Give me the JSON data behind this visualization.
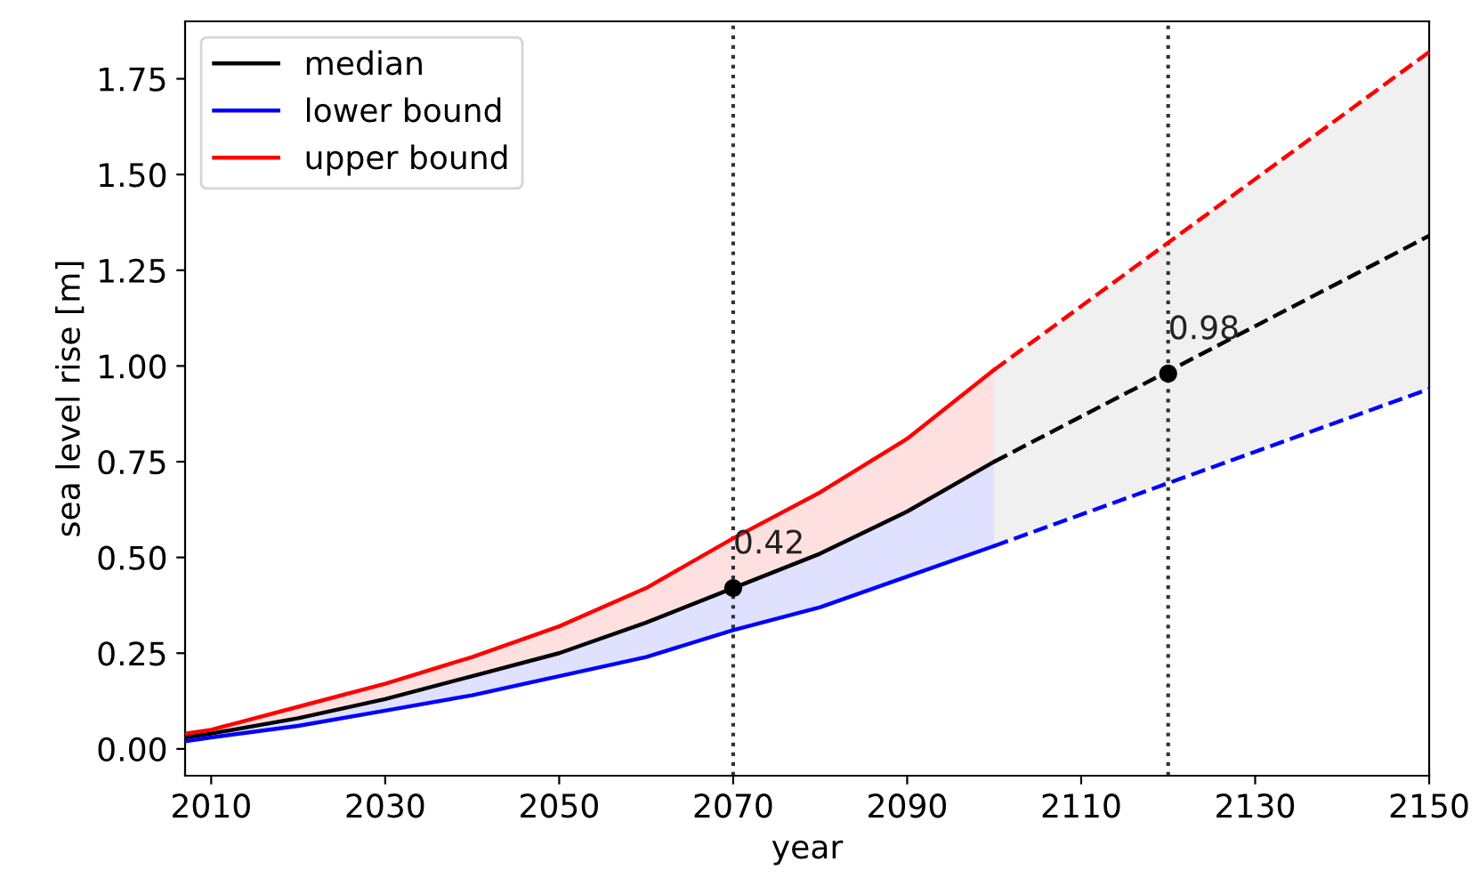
{
  "chart_data": {
    "type": "line",
    "xlabel": "year",
    "ylabel": "sea level rise [m]",
    "xlim": [
      2007,
      2150
    ],
    "ylim": [
      -0.07,
      1.9
    ],
    "xticks": [
      2010,
      2030,
      2050,
      2070,
      2090,
      2110,
      2130,
      2150
    ],
    "yticks": [
      {
        "value": 0,
        "label": "0.00"
      },
      {
        "value": 0.25,
        "label": "0.25"
      },
      {
        "value": 0.5,
        "label": "0.50"
      },
      {
        "value": 0.75,
        "label": "0.75"
      },
      {
        "value": 1.0,
        "label": "1.00"
      },
      {
        "value": 1.25,
        "label": "1.25"
      },
      {
        "value": 1.5,
        "label": "1.50"
      },
      {
        "value": 1.75,
        "label": "1.75"
      }
    ],
    "grid": false,
    "legend": "top left",
    "series": [
      {
        "name": "median",
        "color": "#000000",
        "line_style": "solid",
        "x": [
          2007,
          2010,
          2020,
          2030,
          2040,
          2050,
          2060,
          2070,
          2080,
          2090,
          2100
        ],
        "values": [
          0.03,
          0.04,
          0.08,
          0.13,
          0.19,
          0.25,
          0.33,
          0.42,
          0.51,
          0.62,
          0.75
        ]
      },
      {
        "name": "lower bound",
        "color": "#0000ff",
        "line_style": "solid",
        "x": [
          2007,
          2010,
          2020,
          2030,
          2040,
          2050,
          2060,
          2070,
          2080,
          2090,
          2100
        ],
        "values": [
          0.02,
          0.03,
          0.06,
          0.1,
          0.14,
          0.19,
          0.24,
          0.31,
          0.37,
          0.45,
          0.53
        ],
        "lower": [
          0.02,
          0.03,
          0.06,
          0.1,
          0.14,
          0.19,
          0.24,
          0.31,
          0.37,
          0.45,
          0.53
        ],
        "upper": [
          0.03,
          0.04,
          0.08,
          0.13,
          0.19,
          0.25,
          0.33,
          0.42,
          0.51,
          0.62,
          0.75
        ]
      },
      {
        "name": "upper bound",
        "color": "#ff0000",
        "line_style": "solid",
        "x": [
          2007,
          2010,
          2020,
          2030,
          2040,
          2050,
          2060,
          2070,
          2080,
          2090,
          2100
        ],
        "values": [
          0.04,
          0.05,
          0.11,
          0.17,
          0.24,
          0.32,
          0.42,
          0.55,
          0.67,
          0.81,
          0.99
        ],
        "lower": [
          0.03,
          0.04,
          0.08,
          0.13,
          0.19,
          0.25,
          0.33,
          0.42,
          0.51,
          0.62,
          0.75
        ],
        "upper": [
          0.04,
          0.05,
          0.11,
          0.17,
          0.24,
          0.32,
          0.42,
          0.55,
          0.67,
          0.81,
          0.99
        ]
      },
      {
        "color": "#000000",
        "line_style": "dashed",
        "x": [
          2100,
          2150
        ],
        "values": [
          0.75,
          1.34
        ],
        "lower": [
          0.53,
          0.94
        ],
        "upper": [
          0.99,
          1.82
        ]
      },
      {
        "color": "#0000ff",
        "line_style": "dashed",
        "x": [
          2100,
          2150
        ],
        "values": [
          0.53,
          0.94
        ]
      },
      {
        "color": "#ff0000",
        "line_style": "dashed",
        "x": [
          2100,
          2150
        ],
        "values": [
          0.99,
          1.82
        ]
      },
      {
        "type": "scatter",
        "color": "#000000",
        "marker": "circle",
        "x": [
          2070,
          2120
        ],
        "values": [
          0.42,
          0.98
        ],
        "value_labels": [
          "0.42",
          "0.98"
        ]
      }
    ],
    "ref_lines": [
      {
        "axis": "x",
        "value": 2070,
        "color": "#333333",
        "line_style": "dotted"
      },
      {
        "axis": "x",
        "value": 2120,
        "color": "#333333",
        "line_style": "dotted"
      }
    ]
  }
}
